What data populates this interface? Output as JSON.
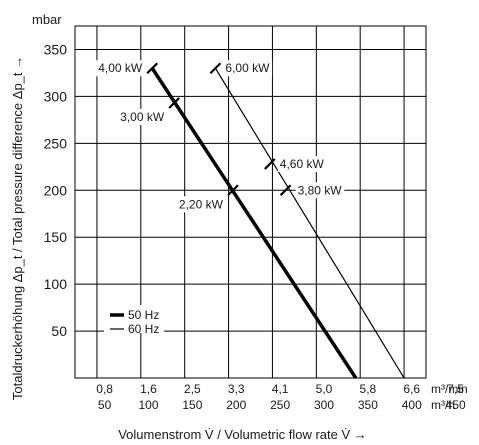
{
  "chart_data": {
    "type": "line",
    "y_unit": "mbar",
    "ylabel": "Totaldruckerhöhung Δp_t / Total pressure difference Δp_t →",
    "xlabel": "Volumenstrom V̇ / Volumetric flow rate V̇ →",
    "x_unit_min": "m³/min",
    "x_unit_h": "m³/h",
    "ylim": [
      0,
      375
    ],
    "xlim": [
      0,
      400
    ],
    "x_ticks": [
      50,
      100,
      150,
      200,
      250,
      300,
      350,
      400,
      450
    ],
    "x_tick_labels_min": [
      "0,8",
      "1,6",
      "2,5",
      "3,3",
      "4,1",
      "5,0",
      "5,8",
      "6,6",
      "7,5"
    ],
    "x_tick_labels_h": [
      "50",
      "100",
      "150",
      "200",
      "250",
      "300",
      "350",
      "400",
      "450"
    ],
    "y_ticks": [
      50,
      100,
      150,
      200,
      250,
      300,
      350
    ],
    "grid": true,
    "legend": [
      {
        "label": "50 Hz",
        "style": "thick"
      },
      {
        "label": "60 Hz",
        "style": "thin"
      }
    ],
    "series": [
      {
        "name": "50 Hz",
        "points": [
          [
            88,
            330
          ],
          [
            320,
            0
          ]
        ]
      },
      {
        "name": "60 Hz",
        "points": [
          [
            160,
            330
          ],
          [
            375,
            0
          ]
        ]
      }
    ],
    "annotations": [
      {
        "text": "4,00 kW",
        "x": 88,
        "y": 330
      },
      {
        "text": "3,00 kW",
        "x": 113,
        "y": 293
      },
      {
        "text": "2,20 kW",
        "x": 180,
        "y": 200
      },
      {
        "text": "6,00 kW",
        "x": 160,
        "y": 330
      },
      {
        "text": "4,60 kW",
        "x": 222,
        "y": 228
      },
      {
        "text": "3,80 kW",
        "x": 240,
        "y": 200
      }
    ]
  }
}
